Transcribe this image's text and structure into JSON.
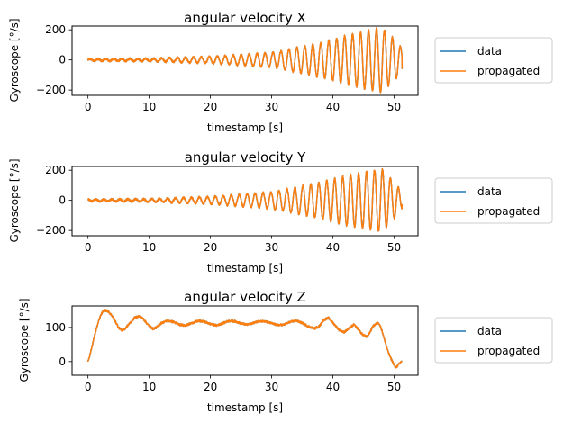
{
  "colors": {
    "data": "#1f77b4",
    "propagated": "#ff7f0e",
    "axes": "#000000",
    "legend_border": "#cccccc"
  },
  "chart_data": [
    {
      "type": "line",
      "title": "angular velocity X",
      "xlabel": "timestamp [s]",
      "ylabel": "Gyroscope [°/s]",
      "xlim": [
        -2.6,
        53.9
      ],
      "ylim": [
        -235,
        225
      ],
      "xticks": [
        0,
        10,
        20,
        30,
        40,
        50
      ],
      "xtick_labels": [
        "0",
        "10",
        "20",
        "30",
        "40",
        "50"
      ],
      "yticks": [
        -200,
        0,
        200
      ],
      "ytick_labels": [
        "−200",
        "0",
        "200"
      ],
      "legend": {
        "location": "outside-right",
        "entries": [
          "data",
          "propagated"
        ]
      },
      "signal": {
        "t_start": 0,
        "t_end": 51.3,
        "period_s": 1.3,
        "baseline": 0,
        "noise": 6,
        "envelope": [
          [
            0,
            6
          ],
          [
            10,
            9
          ],
          [
            20,
            22
          ],
          [
            30,
            48
          ],
          [
            38,
            115
          ],
          [
            42,
            160
          ],
          [
            46,
            200
          ],
          [
            48,
            215
          ],
          [
            50,
            140
          ],
          [
            51.3,
            75
          ]
        ],
        "end_value": -60
      },
      "series": [
        {
          "name": "data"
        },
        {
          "name": "propagated"
        }
      ]
    },
    {
      "type": "line",
      "title": "angular velocity Y",
      "xlabel": "timestamp [s]",
      "ylabel": "Gyroscope [°/s]",
      "xlim": [
        -2.6,
        53.9
      ],
      "ylim": [
        -235,
        225
      ],
      "xticks": [
        0,
        10,
        20,
        30,
        40,
        50
      ],
      "xtick_labels": [
        "0",
        "10",
        "20",
        "30",
        "40",
        "50"
      ],
      "yticks": [
        -200,
        0,
        200
      ],
      "ytick_labels": [
        "−200",
        "0",
        "200"
      ],
      "legend": {
        "location": "outside-right",
        "entries": [
          "data",
          "propagated"
        ]
      },
      "signal": {
        "t_start": 0,
        "t_end": 51.3,
        "period_s": 1.3,
        "baseline": 0,
        "noise": 6,
        "phase": 1.57,
        "envelope": [
          [
            0,
            6
          ],
          [
            10,
            9
          ],
          [
            20,
            24
          ],
          [
            30,
            55
          ],
          [
            38,
            120
          ],
          [
            42,
            165
          ],
          [
            46,
            195
          ],
          [
            48,
            210
          ],
          [
            50,
            120
          ],
          [
            51.3,
            55
          ]
        ],
        "end_value": -25
      },
      "series": [
        {
          "name": "data"
        },
        {
          "name": "propagated"
        }
      ]
    },
    {
      "type": "line",
      "title": "angular velocity Z",
      "xlabel": "timestamp [s]",
      "ylabel": "Gyroscope [°/s]",
      "xlim": [
        -2.6,
        53.9
      ],
      "ylim": [
        -40,
        163
      ],
      "xticks": [
        0,
        10,
        20,
        30,
        40,
        50
      ],
      "xtick_labels": [
        "0",
        "10",
        "20",
        "30",
        "40",
        "50"
      ],
      "yticks": [
        0,
        100
      ],
      "ytick_labels": [
        "0",
        "100"
      ],
      "legend": {
        "location": "outside-right",
        "entries": [
          "data",
          "propagated"
        ]
      },
      "points": [
        [
          0,
          0
        ],
        [
          0.4,
          25
        ],
        [
          0.8,
          55
        ],
        [
          1.2,
          85
        ],
        [
          1.6,
          110
        ],
        [
          2.0,
          132
        ],
        [
          2.4,
          146
        ],
        [
          2.8,
          150
        ],
        [
          3.2,
          148
        ],
        [
          3.8,
          138
        ],
        [
          4.4,
          120
        ],
        [
          5.0,
          100
        ],
        [
          5.5,
          92
        ],
        [
          6.0,
          95
        ],
        [
          6.8,
          112
        ],
        [
          7.6,
          128
        ],
        [
          8.3,
          133
        ],
        [
          9.0,
          126
        ],
        [
          9.8,
          108
        ],
        [
          10.6,
          96
        ],
        [
          11.2,
          100
        ],
        [
          12.0,
          113
        ],
        [
          13.0,
          120
        ],
        [
          14.0,
          116
        ],
        [
          15.0,
          108
        ],
        [
          16.0,
          106
        ],
        [
          17.0,
          113
        ],
        [
          18.0,
          119
        ],
        [
          19.0,
          117
        ],
        [
          20.0,
          110
        ],
        [
          21.0,
          106
        ],
        [
          22.0,
          112
        ],
        [
          23.0,
          119
        ],
        [
          24.0,
          118
        ],
        [
          25.0,
          112
        ],
        [
          26.0,
          108
        ],
        [
          27.0,
          113
        ],
        [
          28.0,
          119
        ],
        [
          29.0,
          117
        ],
        [
          30.0,
          112
        ],
        [
          31.0,
          107
        ],
        [
          32.0,
          108
        ],
        [
          33.0,
          116
        ],
        [
          34.0,
          120
        ],
        [
          35.0,
          113
        ],
        [
          36.0,
          103
        ],
        [
          37.0,
          97
        ],
        [
          37.8,
          104
        ],
        [
          38.5,
          122
        ],
        [
          39.3,
          128
        ],
        [
          40.1,
          112
        ],
        [
          41.0,
          93
        ],
        [
          41.8,
          86
        ],
        [
          42.6,
          96
        ],
        [
          43.4,
          108
        ],
        [
          44.0,
          98
        ],
        [
          44.8,
          80
        ],
        [
          45.5,
          72
        ],
        [
          46.0,
          84
        ],
        [
          46.5,
          102
        ],
        [
          47.0,
          110
        ],
        [
          47.5,
          114
        ],
        [
          48.0,
          92
        ],
        [
          48.5,
          60
        ],
        [
          49.0,
          30
        ],
        [
          49.4,
          12
        ],
        [
          49.8,
          -2
        ],
        [
          50.2,
          -18
        ],
        [
          50.6,
          -12
        ],
        [
          51.0,
          -3
        ],
        [
          51.3,
          2
        ]
      ],
      "noise": 3,
      "series": [
        {
          "name": "data"
        },
        {
          "name": "propagated"
        }
      ]
    }
  ]
}
